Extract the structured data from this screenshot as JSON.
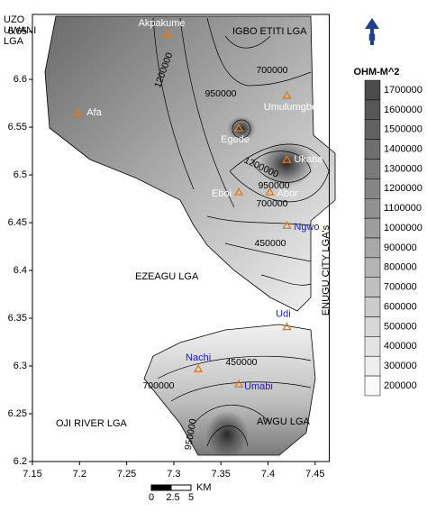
{
  "axes": {
    "xlim": [
      7.15,
      7.465
    ],
    "ylim": [
      6.2,
      6.668
    ],
    "xticks": [
      7.15,
      7.2,
      7.25,
      7.3,
      7.35,
      7.4,
      7.45
    ],
    "yticks": [
      6.2,
      6.25,
      6.3,
      6.35,
      6.4,
      6.45,
      6.5,
      6.55,
      6.6,
      6.65
    ]
  },
  "places": [
    {
      "name": "Akpakume",
      "lon": 7.293,
      "lat": 6.648,
      "color": "#ffffff"
    },
    {
      "name": "Afa",
      "lon": 7.198,
      "lat": 6.565,
      "color": "#ffffff"
    },
    {
      "name": "Umulumgbe",
      "lon": 7.42,
      "lat": 6.583,
      "color": "#ffffff"
    },
    {
      "name": "Egede",
      "lon": 7.369,
      "lat": 6.549,
      "color": "#ffffff"
    },
    {
      "name": "Ukana",
      "lon": 7.42,
      "lat": 6.516,
      "color": "#ffffff"
    },
    {
      "name": "Abor",
      "lon": 7.402,
      "lat": 6.482,
      "color": "#ffffff"
    },
    {
      "name": "Eboi",
      "lon": 7.369,
      "lat": 6.482,
      "color": "#ffffff"
    },
    {
      "name": "Ngwo",
      "lon": 7.42,
      "lat": 6.447,
      "color": "#1a1ad0"
    },
    {
      "name": "Udi",
      "lon": 7.42,
      "lat": 6.341,
      "color": "#1a1ad0"
    },
    {
      "name": "Nachi",
      "lon": 7.326,
      "lat": 6.297,
      "color": "#1a1ad0"
    },
    {
      "name": "Umabi",
      "lon": 7.369,
      "lat": 6.281,
      "color": "#1a1ad0"
    }
  ],
  "regions": [
    [
      "UZO",
      "UWANI",
      "LGA"
    ],
    [
      "IGBO ETITI LGA"
    ],
    [
      "EZEAGU LGA"
    ],
    [
      "ENUGU CITY LGA's"
    ],
    [
      "OJI RIVER LGA"
    ],
    [
      "AWGU LGA"
    ]
  ],
  "contour_labels": [
    1200000,
    950000,
    700000,
    1200000,
    950000,
    700000,
    450000,
    450000,
    700000,
    950000
  ],
  "legend": {
    "title": "OHM-M^2",
    "values": [
      1700000,
      1600000,
      1500000,
      1400000,
      1300000,
      1200000,
      1100000,
      1000000,
      900000,
      800000,
      700000,
      600000,
      500000,
      400000,
      300000,
      200000
    ]
  },
  "north": "N",
  "scale_bar": {
    "ticks": [
      0,
      2.5,
      5
    ],
    "unit": "KM"
  }
}
